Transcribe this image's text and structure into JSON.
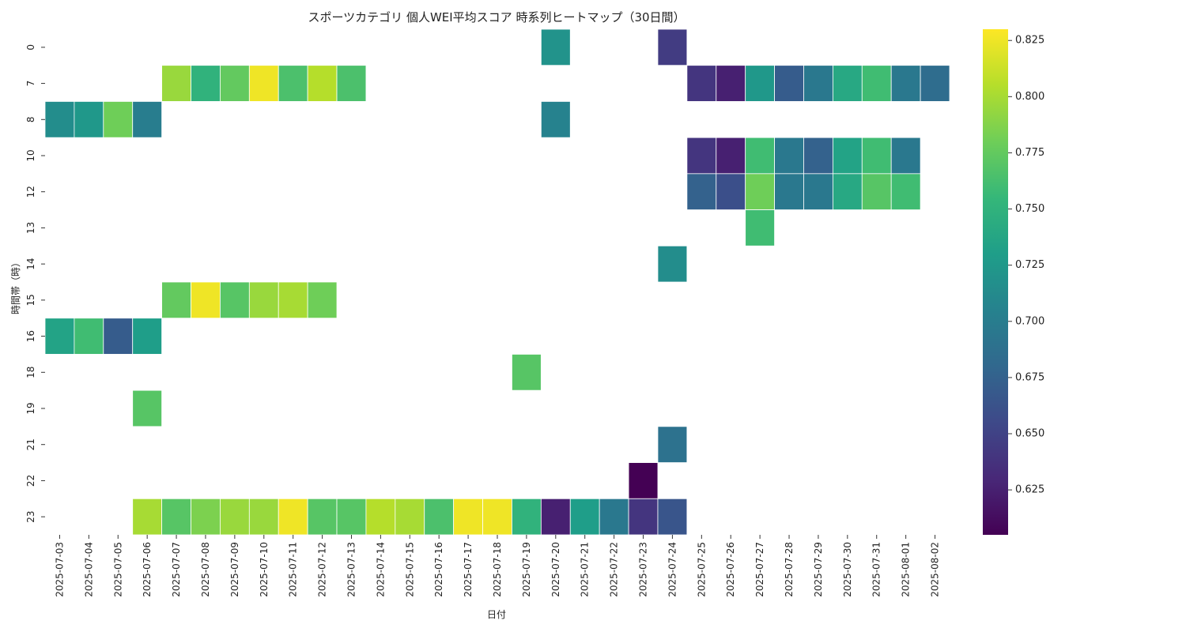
{
  "chart_data": {
    "type": "heatmap",
    "title": "スポーツカテゴリ 個人WEI平均スコア 時系列ヒートマップ（30日間）",
    "xlabel": "日付",
    "ylabel": "時間帯（時）",
    "colormap": "viridis",
    "linecolor": "#ffffff",
    "missing_color": "#ffffff",
    "x": [
      "2025-07-03",
      "2025-07-04",
      "2025-07-05",
      "2025-07-06",
      "2025-07-07",
      "2025-07-08",
      "2025-07-09",
      "2025-07-10",
      "2025-07-11",
      "2025-07-12",
      "2025-07-13",
      "2025-07-14",
      "2025-07-15",
      "2025-07-16",
      "2025-07-17",
      "2025-07-18",
      "2025-07-19",
      "2025-07-20",
      "2025-07-21",
      "2025-07-22",
      "2025-07-23",
      "2025-07-24",
      "2025-07-25",
      "2025-07-26",
      "2025-07-27",
      "2025-07-28",
      "2025-07-29",
      "2025-07-30",
      "2025-07-31",
      "2025-08-01",
      "2025-08-02"
    ],
    "y": [
      "0",
      "7",
      "8",
      "10",
      "12",
      "13",
      "14",
      "15",
      "16",
      "18",
      "19",
      "21",
      "22",
      "23"
    ],
    "values": [
      [
        null,
        null,
        null,
        null,
        null,
        null,
        null,
        null,
        null,
        null,
        null,
        null,
        null,
        null,
        null,
        null,
        null,
        0.72,
        null,
        null,
        null,
        0.645,
        null,
        null,
        null,
        null,
        null,
        null,
        null,
        null,
        null
      ],
      [
        null,
        null,
        null,
        null,
        0.795,
        0.75,
        0.775,
        0.825,
        0.765,
        0.805,
        0.765,
        null,
        null,
        null,
        null,
        null,
        null,
        null,
        null,
        null,
        null,
        null,
        0.64,
        0.625,
        0.725,
        0.67,
        0.695,
        0.74,
        0.76,
        0.695,
        0.685
      ],
      [
        0.715,
        0.725,
        0.78,
        0.7,
        null,
        null,
        null,
        null,
        null,
        null,
        null,
        null,
        null,
        null,
        null,
        null,
        null,
        0.705,
        null,
        null,
        null,
        null,
        null,
        null,
        null,
        null,
        null,
        null,
        null,
        null,
        null
      ],
      [
        null,
        null,
        null,
        null,
        null,
        null,
        null,
        null,
        null,
        null,
        null,
        null,
        null,
        null,
        null,
        null,
        null,
        null,
        null,
        null,
        null,
        null,
        0.64,
        0.625,
        0.76,
        0.695,
        0.675,
        0.735,
        0.76,
        0.695,
        null
      ],
      [
        null,
        null,
        null,
        null,
        null,
        null,
        null,
        null,
        null,
        null,
        null,
        null,
        null,
        null,
        null,
        null,
        null,
        null,
        null,
        null,
        null,
        null,
        0.675,
        0.66,
        0.78,
        0.695,
        0.695,
        0.74,
        0.77,
        0.76,
        null
      ],
      [
        null,
        null,
        null,
        null,
        null,
        null,
        null,
        null,
        null,
        null,
        null,
        null,
        null,
        null,
        null,
        null,
        null,
        null,
        null,
        null,
        null,
        null,
        null,
        null,
        0.76,
        null,
        null,
        null,
        null,
        null,
        null
      ],
      [
        null,
        null,
        null,
        null,
        null,
        null,
        null,
        null,
        null,
        null,
        null,
        null,
        null,
        null,
        null,
        null,
        null,
        null,
        null,
        null,
        null,
        0.715,
        null,
        null,
        null,
        null,
        null,
        null,
        null,
        null,
        null
      ],
      [
        null,
        null,
        null,
        null,
        0.775,
        0.825,
        0.77,
        0.795,
        0.8,
        0.78,
        null,
        null,
        null,
        null,
        null,
        null,
        null,
        null,
        null,
        null,
        null,
        null,
        null,
        null,
        null,
        null,
        null,
        null,
        null,
        null,
        null
      ],
      [
        0.735,
        0.76,
        0.67,
        0.73,
        null,
        null,
        null,
        null,
        null,
        null,
        null,
        null,
        null,
        null,
        null,
        null,
        null,
        null,
        null,
        null,
        null,
        null,
        null,
        null,
        null,
        null,
        null,
        null,
        null,
        null,
        null
      ],
      [
        null,
        null,
        null,
        null,
        null,
        null,
        null,
        null,
        null,
        null,
        null,
        null,
        null,
        null,
        null,
        null,
        0.77,
        null,
        null,
        null,
        null,
        null,
        null,
        null,
        null,
        null,
        null,
        null,
        null,
        null,
        null
      ],
      [
        null,
        null,
        null,
        0.77,
        null,
        null,
        null,
        null,
        null,
        null,
        null,
        null,
        null,
        null,
        null,
        null,
        null,
        null,
        null,
        null,
        null,
        null,
        null,
        null,
        null,
        null,
        null,
        null,
        null,
        null,
        null
      ],
      [
        null,
        null,
        null,
        null,
        null,
        null,
        null,
        null,
        null,
        null,
        null,
        null,
        null,
        null,
        null,
        null,
        null,
        null,
        null,
        null,
        null,
        0.69,
        null,
        null,
        null,
        null,
        null,
        null,
        null,
        null,
        null
      ],
      [
        null,
        null,
        null,
        null,
        null,
        null,
        null,
        null,
        null,
        null,
        null,
        null,
        null,
        null,
        null,
        null,
        null,
        null,
        null,
        null,
        0.605,
        null,
        null,
        null,
        null,
        null,
        null,
        null,
        null,
        null,
        null
      ],
      [
        null,
        null,
        null,
        0.8,
        0.77,
        0.785,
        0.795,
        0.795,
        0.825,
        0.77,
        0.77,
        0.805,
        0.8,
        0.765,
        0.825,
        0.825,
        0.75,
        0.625,
        0.73,
        0.695,
        0.64,
        0.665,
        null,
        null,
        null,
        null,
        null,
        null,
        null,
        null,
        null
      ]
    ],
    "vmin": 0.605,
    "vmax": 0.83,
    "colorbar_ticks": [
      0.625,
      0.65,
      0.675,
      0.7,
      0.725,
      0.75,
      0.775,
      0.8,
      0.825
    ],
    "colorbar_tick_labels": [
      "0.625",
      "0.650",
      "0.675",
      "0.700",
      "0.725",
      "0.750",
      "0.775",
      "0.800",
      "0.825"
    ]
  }
}
